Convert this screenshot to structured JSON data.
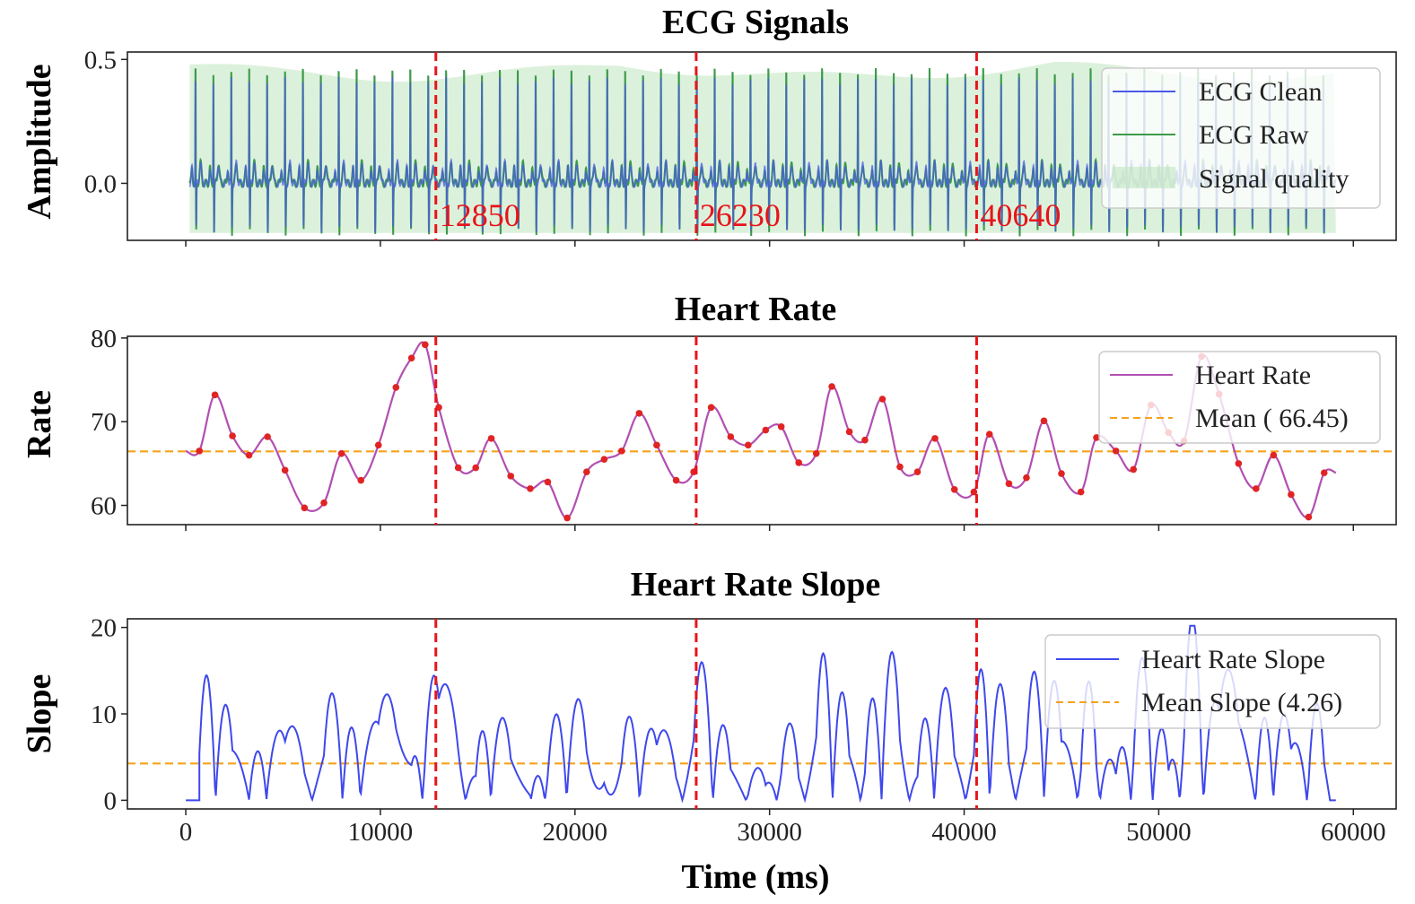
{
  "figure": {
    "xlabel": "Time (ms)"
  },
  "colors": {
    "clean": "#4a5ae8",
    "raw": "#3c9a4a",
    "quality": "#bfe6bf",
    "hr": "#b24fb2",
    "hr_point": "#e02424",
    "mean": "#f5a21b",
    "slope": "#3f48ec",
    "vline": "#e8141a"
  },
  "chart_data": [
    {
      "id": "ecg",
      "type": "line",
      "title": "ECG Signals",
      "ylabel": "Amplitude",
      "xlim": [
        -3000,
        62200
      ],
      "ylim": [
        -0.23,
        0.53
      ],
      "xticks": [
        0,
        10000,
        20000,
        30000,
        40000,
        50000,
        60000
      ],
      "yticks": [
        0.0,
        0.5
      ],
      "ytick_labels": [
        "0.0",
        "0.5"
      ],
      "beat_start": 200,
      "beat_interval": 920,
      "beat_end": 59100,
      "r_peak_amplitude": 0.49,
      "s_trough_amplitude": -0.2,
      "signal_quality_range": [
        -0.2,
        0.48
      ],
      "vlines": [
        12850,
        26230,
        40640
      ],
      "vline_labels": [
        "12850",
        "26230",
        "40640"
      ],
      "legend": [
        "ECG Clean",
        "ECG Raw",
        "Signal quality"
      ]
    },
    {
      "id": "hr",
      "type": "line",
      "title": "Heart Rate",
      "ylabel": "Rate",
      "xlim": [
        -3000,
        62200
      ],
      "ylim": [
        57.7,
        80.2
      ],
      "xticks": [
        0,
        10000,
        20000,
        30000,
        40000,
        50000,
        60000
      ],
      "yticks": [
        60,
        70,
        80
      ],
      "ytick_labels": [
        "60",
        "70",
        "80"
      ],
      "mean": 66.45,
      "x": [
        0,
        700,
        1500,
        2400,
        3250,
        4200,
        5100,
        6100,
        7100,
        8000,
        9000,
        9900,
        10800,
        11600,
        12300,
        13000,
        14000,
        14900,
        15700,
        16700,
        17700,
        18600,
        19600,
        20600,
        21500,
        22400,
        23300,
        24200,
        25200,
        26100,
        27000,
        28000,
        28900,
        29800,
        30600,
        31500,
        32400,
        33200,
        34100,
        34900,
        35800,
        36700,
        37600,
        38500,
        39500,
        40500,
        41300,
        42300,
        43200,
        44100,
        45000,
        46000,
        46800,
        47800,
        48700,
        49600,
        50500,
        51300,
        52200,
        53100,
        54100,
        55000,
        55900,
        56800,
        57700,
        58500,
        59100
      ],
      "values": [
        66.5,
        66.5,
        73.2,
        68.3,
        66.0,
        68.2,
        64.2,
        59.7,
        60.3,
        66.2,
        63.0,
        67.2,
        74.1,
        77.6,
        79.2,
        71.7,
        64.5,
        64.5,
        68.0,
        63.5,
        62.0,
        62.8,
        58.5,
        64.0,
        65.5,
        66.5,
        71.0,
        67.2,
        63.0,
        64.0,
        71.7,
        68.2,
        67.2,
        69.0,
        69.4,
        65.1,
        66.2,
        74.2,
        68.8,
        67.8,
        72.7,
        64.6,
        64.0,
        68.0,
        61.9,
        61.6,
        68.5,
        62.6,
        63.3,
        70.1,
        63.8,
        61.6,
        68.1,
        66.5,
        64.3,
        72.0,
        68.7,
        67.7,
        77.8,
        73.3,
        65.0,
        62.0,
        66.0,
        61.3,
        58.6,
        63.9,
        63.9
      ],
      "points": true,
      "vlines": [
        12850,
        26230,
        40640
      ],
      "legend": [
        "Heart Rate",
        "Mean ( 66.45)"
      ]
    },
    {
      "id": "slope",
      "type": "line",
      "title": "Heart Rate Slope",
      "ylabel": "Slope",
      "xlim": [
        -3000,
        62200
      ],
      "ylim": [
        -1.0,
        21.0
      ],
      "xticks": [
        0,
        10000,
        20000,
        30000,
        40000,
        50000,
        60000
      ],
      "xtick_labels": [
        "0",
        "10000",
        "20000",
        "30000",
        "40000",
        "50000",
        "60000"
      ],
      "yticks": [
        0,
        10,
        20
      ],
      "ytick_labels": [
        "0",
        "10",
        "20"
      ],
      "mean": 4.26,
      "vlines": [
        12850,
        26230,
        40640
      ],
      "legend": [
        "Heart Rate Slope",
        "Mean Slope (4.26)"
      ]
    }
  ]
}
